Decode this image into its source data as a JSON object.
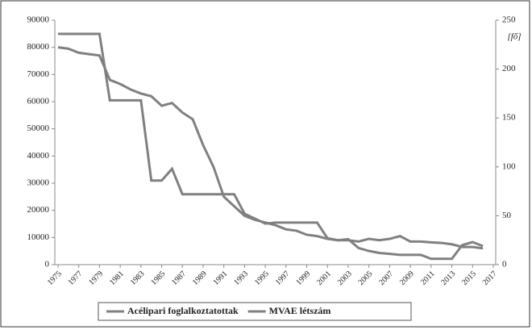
{
  "chart_data": {
    "type": "line",
    "x": [
      1975,
      1976,
      1977,
      1978,
      1979,
      1980,
      1981,
      1982,
      1983,
      1984,
      1985,
      1986,
      1987,
      1988,
      1989,
      1990,
      1991,
      1992,
      1993,
      1994,
      1995,
      1996,
      1997,
      1998,
      1999,
      2000,
      2001,
      2002,
      2003,
      2004,
      2005,
      2006,
      2007,
      2008,
      2009,
      2010,
      2011,
      2012,
      2013,
      2014,
      2015,
      2016
    ],
    "xlim": [
      1975,
      2017
    ],
    "xticks": [
      1975,
      1977,
      1979,
      1981,
      1983,
      1985,
      1987,
      1989,
      1991,
      1993,
      1995,
      1997,
      1999,
      2001,
      2003,
      2005,
      2007,
      2009,
      2011,
      2013,
      2015,
      2017
    ],
    "ylim": [
      0,
      90000
    ],
    "yticks": [
      0,
      10000,
      20000,
      30000,
      40000,
      50000,
      60000,
      70000,
      80000,
      90000
    ],
    "y2lim": [
      0,
      250
    ],
    "y2ticks": [
      0,
      50,
      100,
      150,
      200,
      250
    ],
    "y2label": "[fő]",
    "grid": false,
    "legend": "bottom",
    "series": [
      {
        "name": "Acélipari foglalkoztatottak",
        "color": "#808080",
        "values": [
          80000,
          79500,
          78000,
          77500,
          77000,
          68000,
          66500,
          64500,
          63000,
          62000,
          58500,
          59500,
          56000,
          53500,
          44000,
          36000,
          25000,
          21500,
          18000,
          16500,
          15500,
          14500,
          13000,
          12500,
          11000,
          10500,
          9500,
          9000,
          9000,
          8500,
          9500,
          9000,
          9500,
          10500,
          8500,
          8500,
          8200,
          8000,
          7500,
          6500,
          6500,
          6000
        ]
      },
      {
        "name": "MVAE létszám",
        "color": "#808080",
        "axis": "y2",
        "values": [
          236,
          236,
          236,
          236,
          236,
          168,
          168,
          168,
          168,
          86,
          86,
          98,
          72,
          72,
          72,
          72,
          72,
          72,
          52,
          47,
          42,
          43,
          43,
          43,
          43,
          43,
          27,
          25,
          26,
          17,
          14,
          12,
          11,
          10,
          10,
          10,
          6,
          6,
          6,
          20,
          23,
          19
        ]
      }
    ]
  }
}
